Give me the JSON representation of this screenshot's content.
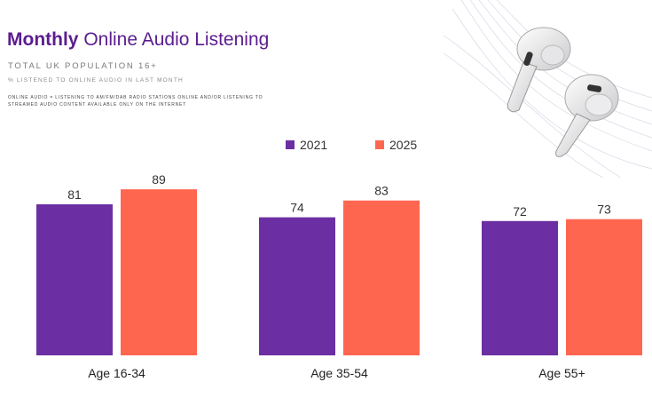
{
  "header": {
    "title_bold": "Monthly",
    "title_rest": "Online Audio Listening",
    "subtitle": "TOTAL UK POPULATION 16+",
    "subtitle2": "% LISTENED TO ONLINE AUDIO IN LAST MONTH",
    "note": "ONLINE AUDIO = LISTENING TO AM/FM/DAB RADIO STATIONS ONLINE AND/OR LISTENING TO STREAMED AUDIO CONTENT AVAILABLE ONLY ON THE INTERNET"
  },
  "colors": {
    "series_2021": "#6b2fa3",
    "series_2025": "#ff6650",
    "title": "#5b1d8f"
  },
  "chart_data": {
    "type": "bar",
    "categories": [
      "Age 16-34",
      "Age 35-54",
      "Age 55+"
    ],
    "series": [
      {
        "name": "2021",
        "values": [
          81,
          74,
          72
        ]
      },
      {
        "name": "2025",
        "values": [
          89,
          83,
          73
        ]
      }
    ],
    "title": "Monthly Online Audio Listening",
    "xlabel": "",
    "ylabel": "",
    "ylim": [
      0,
      100
    ],
    "grid": false,
    "legend_position": "top-center"
  }
}
